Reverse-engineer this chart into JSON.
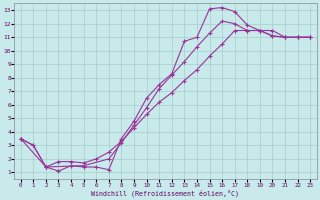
{
  "xlabel": "Windchill (Refroidissement éolien,°C)",
  "bg_color": "#c8eaea",
  "grid_color": "#a8cccc",
  "line_color": "#993399",
  "xlim": [
    -0.5,
    23.5
  ],
  "ylim": [
    0.5,
    13.5
  ],
  "xtick_labels": [
    "0",
    "1",
    "2",
    "3",
    "4",
    "5",
    "6",
    "7",
    "8",
    "9",
    "10",
    "11",
    "12",
    "13",
    "14",
    "15",
    "16",
    "17",
    "18",
    "19",
    "20",
    "21",
    "22",
    "23"
  ],
  "xtick_vals": [
    0,
    1,
    2,
    3,
    4,
    5,
    6,
    7,
    8,
    9,
    10,
    11,
    12,
    13,
    14,
    15,
    16,
    17,
    18,
    19,
    20,
    21,
    22,
    23
  ],
  "ytick_vals": [
    1,
    2,
    3,
    4,
    5,
    6,
    7,
    8,
    9,
    10,
    11,
    12,
    13
  ],
  "line1_x": [
    0,
    1,
    2,
    3,
    4,
    5,
    6,
    7,
    8,
    9,
    10,
    11,
    12,
    13,
    14,
    15,
    16,
    17,
    18,
    19,
    20,
    21,
    22,
    23
  ],
  "line1_y": [
    3.5,
    3.0,
    1.4,
    1.1,
    1.5,
    1.4,
    1.4,
    1.2,
    3.5,
    4.8,
    6.5,
    7.5,
    8.3,
    10.7,
    11.0,
    13.1,
    13.2,
    12.9,
    11.9,
    11.5,
    11.1,
    11.0,
    11.0,
    11.0
  ],
  "line2_x": [
    0,
    1,
    2,
    3,
    4,
    5,
    6,
    7,
    8,
    9,
    10,
    11,
    12,
    13,
    14,
    15,
    16,
    17,
    18,
    19,
    20,
    21,
    22,
    23
  ],
  "line2_y": [
    3.5,
    3.0,
    1.4,
    1.8,
    1.8,
    1.7,
    2.0,
    2.5,
    3.3,
    4.3,
    5.3,
    6.2,
    6.9,
    7.8,
    8.6,
    9.6,
    10.5,
    11.5,
    11.5,
    11.5,
    11.1,
    11.0,
    11.0,
    11.0
  ],
  "line3_x": [
    0,
    2,
    5,
    7,
    8,
    9,
    10,
    11,
    12,
    13,
    14,
    15,
    16,
    17,
    18,
    19,
    20,
    21,
    22,
    23
  ],
  "line3_y": [
    3.5,
    1.4,
    1.5,
    2.0,
    3.2,
    4.5,
    5.8,
    7.2,
    8.2,
    9.2,
    10.3,
    11.3,
    12.2,
    12.0,
    11.5,
    11.5,
    11.5,
    11.0,
    11.0,
    11.0
  ]
}
